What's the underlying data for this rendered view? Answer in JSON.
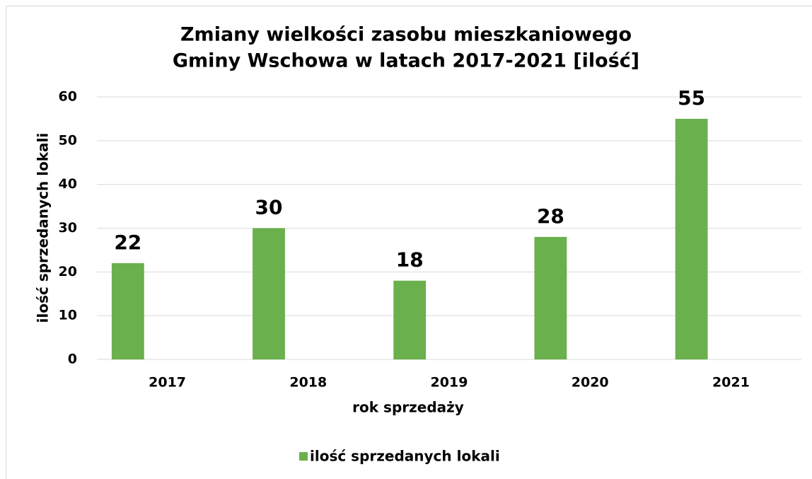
{
  "chart_data": {
    "type": "bar",
    "title": [
      "Zmiany wielkości zasobu mieszkaniowego",
      "Gminy Wschowa w latach 2017-2021 [ilość]"
    ],
    "categories": [
      "2017",
      "2018",
      "2019",
      "2020",
      "2021"
    ],
    "series": [
      {
        "name": "ilość sprzedanych lokali",
        "color": "#6ab04c",
        "values": [
          22,
          30,
          18,
          28,
          55
        ]
      }
    ],
    "ylim": [
      0,
      60
    ],
    "yticks": [
      0,
      10,
      20,
      30,
      40,
      50,
      60
    ],
    "grid": true,
    "xlabel": "rok sprzedaży",
    "ylabel": "ilość sprzedanych lokali",
    "legend": "bottom"
  }
}
